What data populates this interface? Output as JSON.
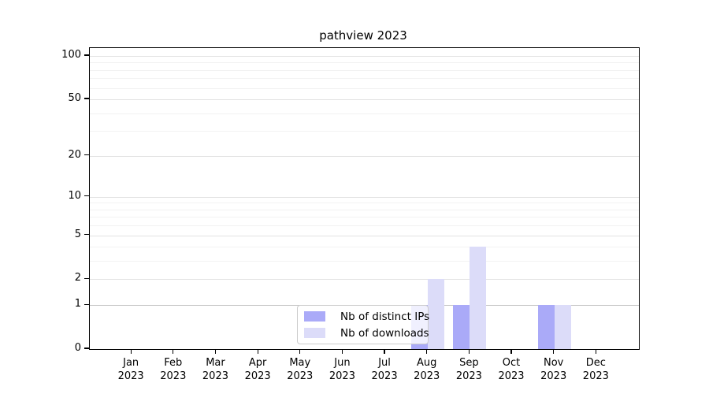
{
  "title": "pathview 2023",
  "colors": {
    "ips_bar": "#aaaaf8",
    "downloads_bar": "#dcdcf9",
    "grid_major": "#e2e2e2",
    "grid_minor": "#f2f2f2",
    "grid_level_one": "#c4c4c4",
    "axis": "#000000",
    "legend_border": "#cccccc",
    "background": "#ffffff"
  },
  "chart_data": {
    "type": "bar",
    "title": "pathview 2023",
    "x_categories": [
      {
        "month": "Jan",
        "year": "2023"
      },
      {
        "month": "Feb",
        "year": "2023"
      },
      {
        "month": "Mar",
        "year": "2023"
      },
      {
        "month": "Apr",
        "year": "2023"
      },
      {
        "month": "May",
        "year": "2023"
      },
      {
        "month": "Jun",
        "year": "2023"
      },
      {
        "month": "Jul",
        "year": "2023"
      },
      {
        "month": "Aug",
        "year": "2023"
      },
      {
        "month": "Sep",
        "year": "2023"
      },
      {
        "month": "Oct",
        "year": "2023"
      },
      {
        "month": "Nov",
        "year": "2023"
      },
      {
        "month": "Dec",
        "year": "2023"
      }
    ],
    "series": [
      {
        "name": "Nb of distinct IPs",
        "color": "#aaaaf8",
        "values": [
          0,
          0,
          0,
          0,
          0,
          0,
          0,
          1,
          1,
          0,
          1,
          0
        ]
      },
      {
        "name": "Nb of downloads",
        "color": "#dcdcf9",
        "values": [
          0,
          0,
          0,
          0,
          0,
          0,
          0,
          2,
          4,
          0,
          1,
          0
        ]
      }
    ],
    "y_axis": {
      "scale": "log10(value+1)",
      "ticks": [
        100,
        50,
        20,
        10,
        5,
        2,
        1,
        0
      ],
      "minor_ticks": [
        3,
        4,
        6,
        7,
        8,
        9,
        30,
        40,
        60,
        70,
        80,
        90
      ],
      "ylim": [
        0,
        113
      ]
    },
    "xlabel": "",
    "ylabel": "",
    "grid": "horizontal",
    "legend_position": "lower center"
  }
}
